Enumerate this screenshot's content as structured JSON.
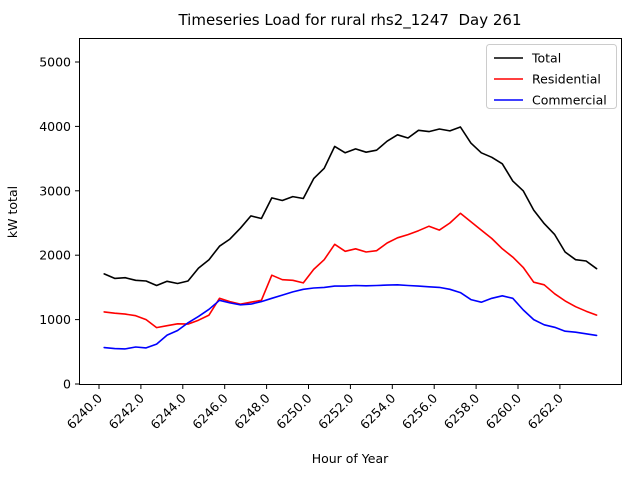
{
  "figure": {
    "background": "#ffffff",
    "frame_color": "#000000"
  },
  "chart_data": {
    "type": "line",
    "title": "Timeseries Load for rural rhs2_1247  Day 261",
    "xlabel": "Hour of Year",
    "ylabel": "kW total",
    "grid": false,
    "legend_position": "upper right",
    "xlim": [
      6239.0,
      6265.0
    ],
    "ylim": [
      0,
      5390
    ],
    "x_ticks": [
      6240,
      6242,
      6244,
      6246,
      6248,
      6250,
      6252,
      6254,
      6256,
      6258,
      6260,
      6262
    ],
    "x_tick_labels": [
      "6240.0",
      "6242.0",
      "6244.0",
      "6246.0",
      "6248.0",
      "6250.0",
      "6252.0",
      "6254.0",
      "6256.0",
      "6258.0",
      "6260.0",
      "6262.0"
    ],
    "y_ticks": [
      0,
      1000,
      2000,
      3000,
      4000,
      5000
    ],
    "y_tick_labels": [
      "0",
      "1000",
      "2000",
      "3000",
      "4000",
      "5000"
    ],
    "x": [
      6240.25,
      6240.75,
      6241.25,
      6241.75,
      6242.25,
      6242.75,
      6243.25,
      6243.75,
      6244.25,
      6244.75,
      6245.25,
      6245.75,
      6246.25,
      6246.75,
      6247.25,
      6247.75,
      6248.25,
      6248.75,
      6249.25,
      6249.75,
      6250.25,
      6250.75,
      6251.25,
      6251.75,
      6252.25,
      6252.75,
      6253.25,
      6253.75,
      6254.25,
      6254.75,
      6255.25,
      6255.75,
      6256.25,
      6256.75,
      6257.25,
      6257.75,
      6258.25,
      6258.75,
      6259.25,
      6259.75,
      6260.25,
      6260.75,
      6261.25,
      6261.75,
      6262.25,
      6262.75,
      6263.25,
      6263.75
    ],
    "series": [
      {
        "name": "Total",
        "color": "#000000",
        "values": [
          1710,
          1640,
          1650,
          1610,
          1600,
          1530,
          1595,
          1560,
          1600,
          1800,
          1930,
          2140,
          2250,
          2420,
          2610,
          2570,
          2890,
          2850,
          2910,
          2880,
          3190,
          3350,
          3690,
          3590,
          3650,
          3600,
          3630,
          3770,
          3870,
          3820,
          3940,
          3920,
          3960,
          3930,
          3990,
          3740,
          3590,
          3520,
          3420,
          3150,
          3000,
          2700,
          2490,
          2320,
          2050,
          1930,
          1910,
          1790
        ]
      },
      {
        "name": "Residential",
        "color": "#ff0000",
        "values": [
          1120,
          1100,
          1085,
          1060,
          1000,
          875,
          905,
          935,
          930,
          990,
          1070,
          1330,
          1280,
          1240,
          1270,
          1300,
          1690,
          1620,
          1610,
          1570,
          1780,
          1930,
          2170,
          2060,
          2100,
          2050,
          2070,
          2190,
          2270,
          2320,
          2380,
          2450,
          2390,
          2500,
          2650,
          2520,
          2390,
          2260,
          2100,
          1970,
          1810,
          1580,
          1540,
          1400,
          1290,
          1200,
          1130,
          1070
        ]
      },
      {
        "name": "Commercial",
        "color": "#0000ff",
        "values": [
          565,
          550,
          545,
          575,
          560,
          620,
          760,
          830,
          950,
          1050,
          1160,
          1300,
          1260,
          1230,
          1240,
          1280,
          1330,
          1380,
          1430,
          1470,
          1490,
          1500,
          1520,
          1520,
          1530,
          1525,
          1530,
          1535,
          1540,
          1530,
          1520,
          1510,
          1500,
          1470,
          1420,
          1310,
          1270,
          1330,
          1370,
          1330,
          1150,
          1000,
          920,
          880,
          820,
          805,
          780,
          755
        ]
      }
    ]
  }
}
